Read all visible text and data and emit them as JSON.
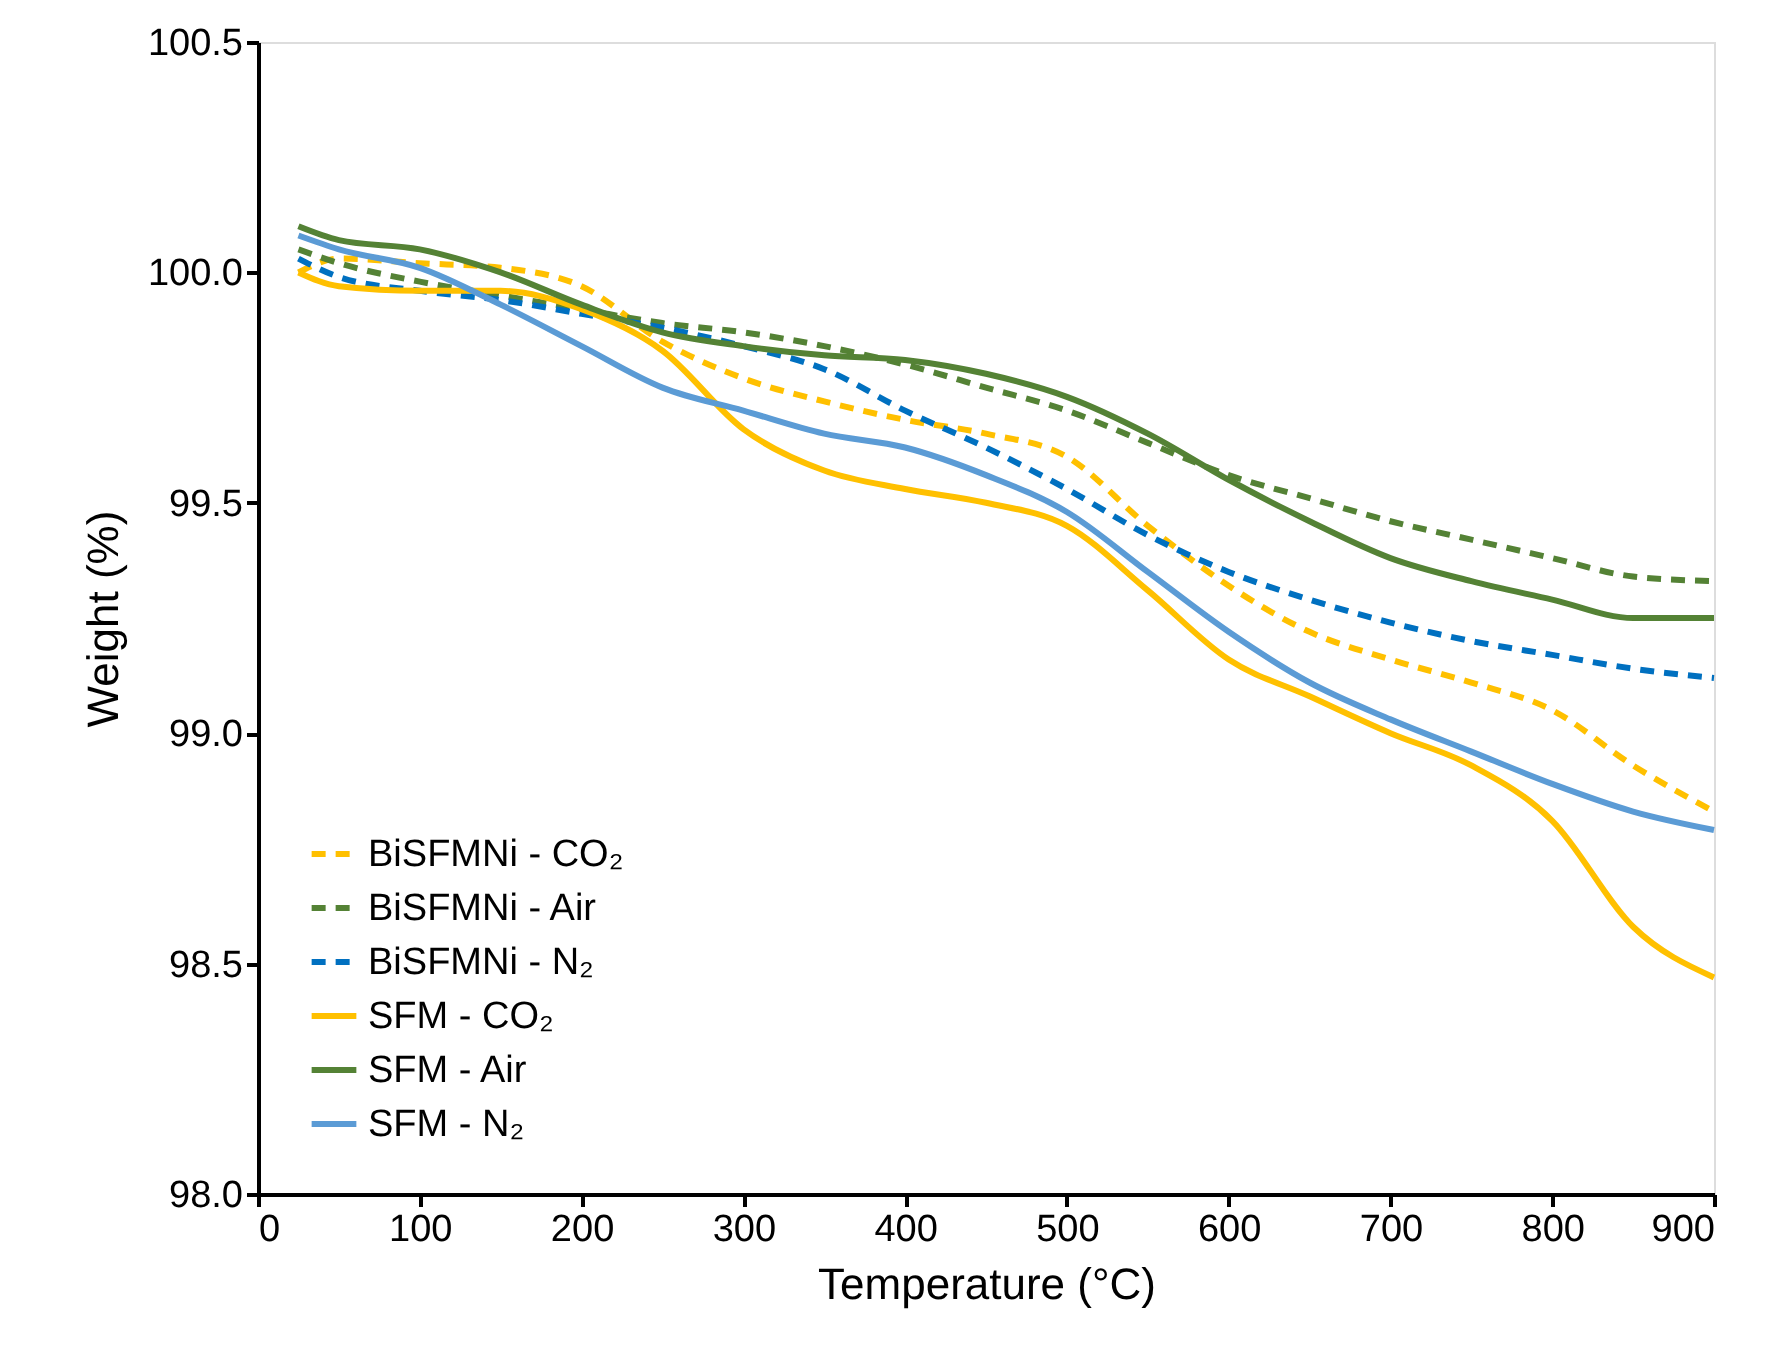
{
  "chart_data": {
    "type": "line",
    "xlabel": "Temperature (°C)",
    "ylabel": "Weight (%)",
    "xlim": [
      0,
      900
    ],
    "xticks": [
      0,
      100,
      200,
      300,
      400,
      500,
      600,
      700,
      800,
      900
    ],
    "ylim": [
      98.0,
      100.5
    ],
    "yticks": [
      {
        "value": 98.0,
        "label": "98.0"
      },
      {
        "value": 98.5,
        "label": "98.5"
      },
      {
        "value": 99.0,
        "label": "99.0"
      },
      {
        "value": 99.5,
        "label": "99.5"
      },
      {
        "value": 100.0,
        "label": "100.0"
      },
      {
        "value": 100.5,
        "label": "100.5"
      }
    ],
    "grid": false,
    "legend": "bottom left",
    "marker": "none",
    "x": [
      25,
      50,
      100,
      150,
      200,
      250,
      300,
      350,
      400,
      450,
      500,
      550,
      600,
      650,
      700,
      750,
      800,
      850,
      900
    ],
    "series": [
      {
        "name": "BiSFMNi - CO₂",
        "color": "#ffc000",
        "line_style": "dashed",
        "values": [
          100.0,
          100.03,
          100.02,
          100.01,
          99.97,
          99.85,
          99.77,
          99.72,
          99.68,
          99.65,
          99.6,
          99.45,
          99.32,
          99.22,
          99.16,
          99.11,
          99.05,
          98.93,
          98.83
        ]
      },
      {
        "name": "BiSFMNi - Air",
        "color": "#548235",
        "line_style": "dashed",
        "values": [
          100.05,
          100.02,
          99.98,
          99.95,
          99.92,
          99.89,
          99.87,
          99.84,
          99.8,
          99.75,
          99.7,
          99.63,
          99.56,
          99.51,
          99.46,
          99.42,
          99.38,
          99.34,
          99.33
        ]
      },
      {
        "name": "BiSFMNi - N₂",
        "color": "#0070c0",
        "line_style": "dashed",
        "values": [
          100.03,
          99.99,
          99.96,
          99.94,
          99.91,
          99.88,
          99.84,
          99.79,
          99.7,
          99.62,
          99.53,
          99.43,
          99.35,
          99.29,
          99.24,
          99.2,
          99.17,
          99.14,
          99.12
        ]
      },
      {
        "name": "SFM - CO₂",
        "color": "#ffc000",
        "line_style": "solid",
        "values": [
          100.0,
          99.97,
          99.96,
          99.96,
          99.92,
          99.83,
          99.66,
          99.57,
          99.53,
          99.5,
          99.45,
          99.31,
          99.16,
          99.08,
          99.0,
          98.93,
          98.81,
          98.58,
          98.47
        ]
      },
      {
        "name": "SFM - Air",
        "color": "#548235",
        "line_style": "solid",
        "values": [
          100.1,
          100.07,
          100.05,
          100.0,
          99.93,
          99.87,
          99.84,
          99.82,
          99.81,
          99.78,
          99.73,
          99.65,
          99.55,
          99.46,
          99.38,
          99.33,
          99.29,
          99.25,
          99.25
        ]
      },
      {
        "name": "SFM - N₂",
        "color": "#5b9bd5",
        "line_style": "solid",
        "values": [
          100.08,
          100.05,
          100.01,
          99.93,
          99.84,
          99.75,
          99.7,
          99.65,
          99.62,
          99.56,
          99.48,
          99.35,
          99.22,
          99.11,
          99.03,
          98.96,
          98.89,
          98.83,
          98.79
        ]
      }
    ]
  }
}
